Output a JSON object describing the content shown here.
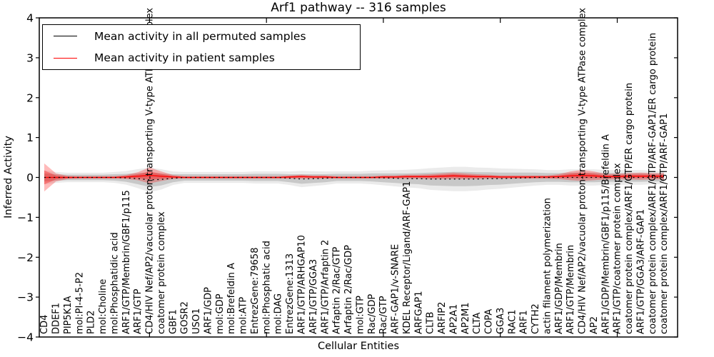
{
  "figure": {
    "title": "Arf1 pathway -- 316 samples",
    "xlabel": "Cellular Entities",
    "ylabel": "Inferred Activity"
  },
  "legend": {
    "items": [
      {
        "label": "Mean activity in all permuted samples",
        "color": "#000000"
      },
      {
        "label": "Mean activity in patient samples",
        "color": "#ff0000"
      }
    ]
  },
  "chart_data": {
    "type": "line",
    "title": "Arf1 pathway -- 316 samples",
    "xlabel": "Cellular Entities",
    "ylabel": "Inferred Activity",
    "ylim": [
      -4,
      4
    ],
    "yticks": [
      4,
      3,
      2,
      1,
      0,
      -1,
      -2,
      -3,
      -4
    ],
    "grid": false,
    "legend_position": "upper left",
    "categories": [
      "CD4",
      "DDEF1",
      "PIP5K1A",
      "mol:PI-4-5-P2",
      "PLD2",
      "mol:Choline",
      "mol:Phosphatidic acid",
      "ARF1/GTP/Membrin/GBF1/p115",
      "ARF1/GTP",
      "CD4/HIV Nef/AP2/vacuolar proton-transporting V-type ATPase complex",
      "coatomer protein complex",
      "GBF1",
      "GOSR2",
      "USO1",
      "ARF1/GDP",
      "mol:GDP",
      "mol:Brefeldin A",
      "mol:ATP",
      "EntrezGene:79658",
      "mol:Phosphatic acid",
      "mol:DAG",
      "EntrezGene:1313",
      "ARF1/GTP/ARHGAP10",
      "ARF1/GTP/GGA3",
      "ARF1/GTP/Arfaptin 2",
      "Arfaptin 2/Rac/GTP",
      "Arfaptin 2/Rac/GDP",
      "mol:GTP",
      "Rac/GDP",
      "Rac/GTP",
      "ARF-GAP1/v-SNARE",
      "KDEL Receptor/Ligand/ARF-GAP1",
      "ARFGAP1",
      "CLTB",
      "ARFIP2",
      "AP2A1",
      "AP2M1",
      "CLTA",
      "COPA",
      "GGA3",
      "RAC1",
      "ARF1",
      "CYTH2",
      "actin filament polymerization",
      "ARF1/GDP/Membrin",
      "ARF1/GTP/Membrin",
      "CD4/HIV Nef/AP2/vacuolar proton-transporting V-type ATPase complex",
      "AP2",
      "ARF1/GDP/Membrin/GBF1/p115/Brefeldin A",
      "ARF1/GTP/coatomer protein complex",
      "coatomer protein complex/ARF1/GTP/ER cargo protein",
      "ARF1/GTP/GGA3/ARF-GAP1",
      "coatomer protein complex/ARF1/GTP/ARF-GAP1/ER cargo protein",
      "coatomer protein complex/ARF1/GTP/ARF-GAP1"
    ],
    "series": [
      {
        "name": "Mean activity in all permuted samples",
        "color": "#000000",
        "linestyle": "dotted",
        "mean": [
          0,
          0,
          0,
          0,
          0,
          0,
          0,
          -0.01,
          -0.03,
          -0.06,
          -0.05,
          -0.02,
          0,
          0,
          0,
          0,
          0,
          0,
          0,
          0,
          0,
          -0.02,
          -0.04,
          -0.03,
          -0.02,
          0,
          0,
          0,
          0,
          -0.01,
          -0.02,
          -0.03,
          -0.03,
          -0.04,
          -0.04,
          -0.04,
          -0.04,
          -0.04,
          -0.03,
          -0.03,
          -0.02,
          -0.01,
          0,
          0,
          0,
          0,
          0,
          0,
          0,
          0,
          0,
          0,
          0,
          0
        ],
        "std": [
          0.1,
          0.08,
          0.07,
          0.07,
          0.07,
          0.07,
          0.08,
          0.1,
          0.14,
          0.18,
          0.15,
          0.1,
          0.08,
          0.08,
          0.08,
          0.08,
          0.08,
          0.08,
          0.09,
          0.09,
          0.09,
          0.1,
          0.12,
          0.11,
          0.1,
          0.09,
          0.09,
          0.09,
          0.1,
          0.11,
          0.12,
          0.13,
          0.14,
          0.16,
          0.17,
          0.18,
          0.18,
          0.17,
          0.16,
          0.15,
          0.14,
          0.13,
          0.12,
          0.11,
          0.11,
          0.12,
          0.12,
          0.12,
          0.11,
          0.11,
          0.11,
          0.11,
          0.1,
          0.1
        ]
      },
      {
        "name": "Mean activity in patient samples",
        "color": "#ff0000",
        "linestyle": "solid",
        "mean": [
          0,
          0,
          0,
          0,
          0,
          0,
          0,
          0.01,
          0.03,
          0.05,
          0.03,
          0.01,
          0,
          0,
          0,
          0,
          0,
          0,
          0,
          0,
          0,
          0.01,
          0.02,
          0.01,
          0.01,
          0,
          0,
          0,
          0,
          0.01,
          0.01,
          0.02,
          0.02,
          0.02,
          0.03,
          0.04,
          0.03,
          0.02,
          0.02,
          0.01,
          0.01,
          0.01,
          0.01,
          0.01,
          0.02,
          0.04,
          0.05,
          0.04,
          0.02,
          0.02,
          0.03,
          0.03,
          0.03,
          0.03
        ],
        "std": [
          0.35,
          0.1,
          0.04,
          0.03,
          0.03,
          0.03,
          0.03,
          0.05,
          0.1,
          0.2,
          0.12,
          0.05,
          0.03,
          0.03,
          0.03,
          0.03,
          0.03,
          0.03,
          0.03,
          0.03,
          0.03,
          0.04,
          0.05,
          0.04,
          0.04,
          0.03,
          0.03,
          0.03,
          0.03,
          0.04,
          0.04,
          0.05,
          0.05,
          0.06,
          0.07,
          0.08,
          0.07,
          0.06,
          0.05,
          0.04,
          0.04,
          0.04,
          0.04,
          0.04,
          0.06,
          0.11,
          0.14,
          0.11,
          0.07,
          0.07,
          0.08,
          0.09,
          0.08,
          0.08
        ]
      }
    ]
  }
}
